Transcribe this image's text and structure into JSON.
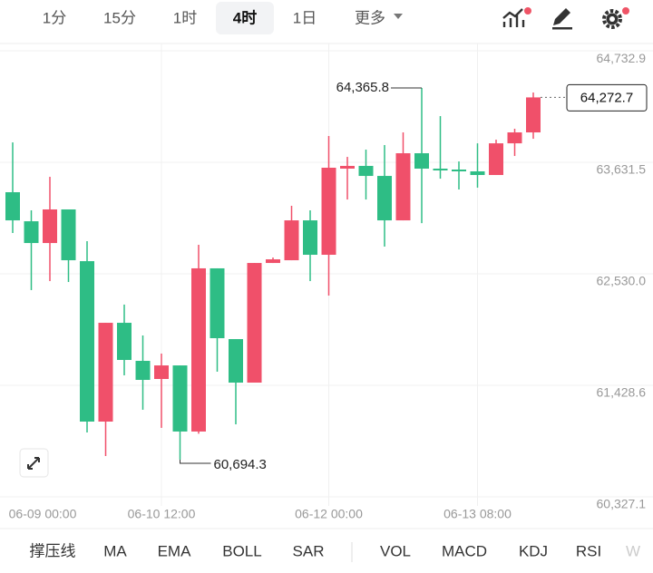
{
  "toolbar": {
    "intervals": [
      "1分",
      "15分",
      "1时",
      "4时",
      "1日",
      "更多"
    ]
  },
  "indicators": [
    "撑压线",
    "MA",
    "EMA",
    "BOLL",
    "SAR",
    "VOL",
    "MACD",
    "KDJ",
    "RSI",
    "W"
  ],
  "chart_data": {
    "type": "candlestick",
    "categories": [
      "06-09 00:00",
      null,
      null,
      null,
      null,
      null,
      null,
      null,
      null,
      "06-10 12:00",
      null,
      null,
      null,
      null,
      null,
      null,
      null,
      null,
      "06-12 00:00",
      null,
      null,
      null,
      null,
      null,
      null,
      null,
      "06-13 08:00",
      null,
      null,
      null
    ],
    "open": [
      null,
      63336,
      63049,
      62834,
      63166,
      62655,
      61070,
      62046,
      61670,
      61491,
      61625,
      60972,
      62584,
      61885,
      61455,
      62637,
      62664,
      63058,
      62718,
      63569,
      63596,
      63497,
      63058,
      63721,
      63569,
      63560,
      63542,
      63506,
      63819,
      63927
    ],
    "high": [
      null,
      63828,
      63157,
      63488,
      63166,
      62852,
      62046,
      62226,
      61921,
      61742,
      61625,
      62817,
      62584,
      61885,
      62637,
      62691,
      63202,
      63157,
      63891,
      63685,
      63757,
      63802,
      63927,
      64365.8,
      64088,
      63640,
      63819,
      63855,
      63963,
      64321
    ],
    "low": [
      null,
      62933,
      62369,
      62458,
      62449,
      60963,
      60730,
      61527,
      61187,
      61008,
      60694.3,
      60950,
      61563,
      61043,
      61455,
      62637,
      62664,
      62458,
      62315,
      63264,
      63264,
      62799,
      63058,
      63031,
      63470,
      63363,
      63381,
      63506,
      63694,
      63864
    ],
    "close": [
      null,
      63058,
      62834,
      63166,
      62664,
      61070,
      62046,
      61679,
      61482,
      61625,
      60972,
      62584,
      61894,
      61455,
      62637,
      62673,
      63058,
      62718,
      63578,
      63596,
      63497,
      63058,
      63721,
      63569,
      63551,
      63542,
      63506,
      63819,
      63927,
      64272.7
    ],
    "high_label": "64,365.8",
    "low_label": "60,694.3",
    "last_label": "64,272.7",
    "up_color": "#f0506a",
    "down_color": "#2ebd85",
    "ylim": [
      60040,
      64805
    ],
    "yticks": [
      {
        "value": 64732.9,
        "label": "64,732.9"
      },
      {
        "value": 63631.5,
        "label": "63,631.5"
      },
      {
        "value": 62530.0,
        "label": "62,530.0"
      },
      {
        "value": 61428.6,
        "label": "61,428.6"
      },
      {
        "value": 60327.1,
        "label": "60,327.1"
      }
    ],
    "grid": true
  }
}
